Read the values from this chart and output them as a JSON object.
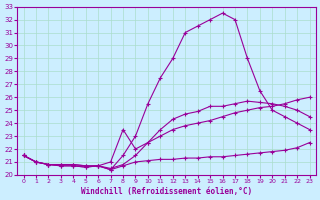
{
  "title": "",
  "xlabel": "Windchill (Refroidissement éolien,°C)",
  "ylabel": "",
  "x": [
    0,
    1,
    2,
    3,
    4,
    5,
    6,
    7,
    8,
    9,
    10,
    11,
    12,
    13,
    14,
    15,
    16,
    17,
    18,
    19,
    20,
    21,
    22,
    23
  ],
  "line1": [
    21.5,
    21.0,
    20.8,
    20.8,
    20.8,
    20.7,
    20.7,
    20.4,
    21.5,
    23.0,
    25.5,
    27.5,
    29.0,
    31.0,
    31.5,
    32.0,
    32.5,
    32.0,
    29.0,
    26.5,
    25.0,
    24.5,
    24.0,
    23.5
  ],
  "line2": [
    21.5,
    21.0,
    20.8,
    20.8,
    20.8,
    20.7,
    20.7,
    20.5,
    20.8,
    21.5,
    22.5,
    23.5,
    24.3,
    24.7,
    24.9,
    25.3,
    25.3,
    25.5,
    25.7,
    25.6,
    25.5,
    25.3,
    25.0,
    24.5
  ],
  "line3": [
    21.5,
    21.0,
    20.8,
    20.7,
    20.7,
    20.6,
    20.7,
    21.0,
    23.5,
    22.0,
    22.5,
    23.0,
    23.5,
    23.8,
    24.0,
    24.2,
    24.5,
    24.8,
    25.0,
    25.2,
    25.3,
    25.5,
    25.8,
    26.0
  ],
  "line4": [
    21.5,
    21.0,
    20.8,
    20.7,
    20.7,
    20.6,
    20.7,
    20.4,
    20.7,
    21.0,
    21.1,
    21.2,
    21.2,
    21.3,
    21.3,
    21.4,
    21.4,
    21.5,
    21.6,
    21.7,
    21.8,
    21.9,
    22.1,
    22.5
  ],
  "line_color": "#990099",
  "bg_color": "#cceeff",
  "grid_color": "#aaddcc",
  "ylim": [
    20,
    33
  ],
  "xlim": [
    -0.5,
    23.5
  ],
  "yticks": [
    20,
    21,
    22,
    23,
    24,
    25,
    26,
    27,
    28,
    29,
    30,
    31,
    32,
    33
  ],
  "xticks": [
    0,
    1,
    2,
    3,
    4,
    5,
    6,
    7,
    8,
    9,
    10,
    11,
    12,
    13,
    14,
    15,
    16,
    17,
    18,
    19,
    20,
    21,
    22,
    23
  ]
}
